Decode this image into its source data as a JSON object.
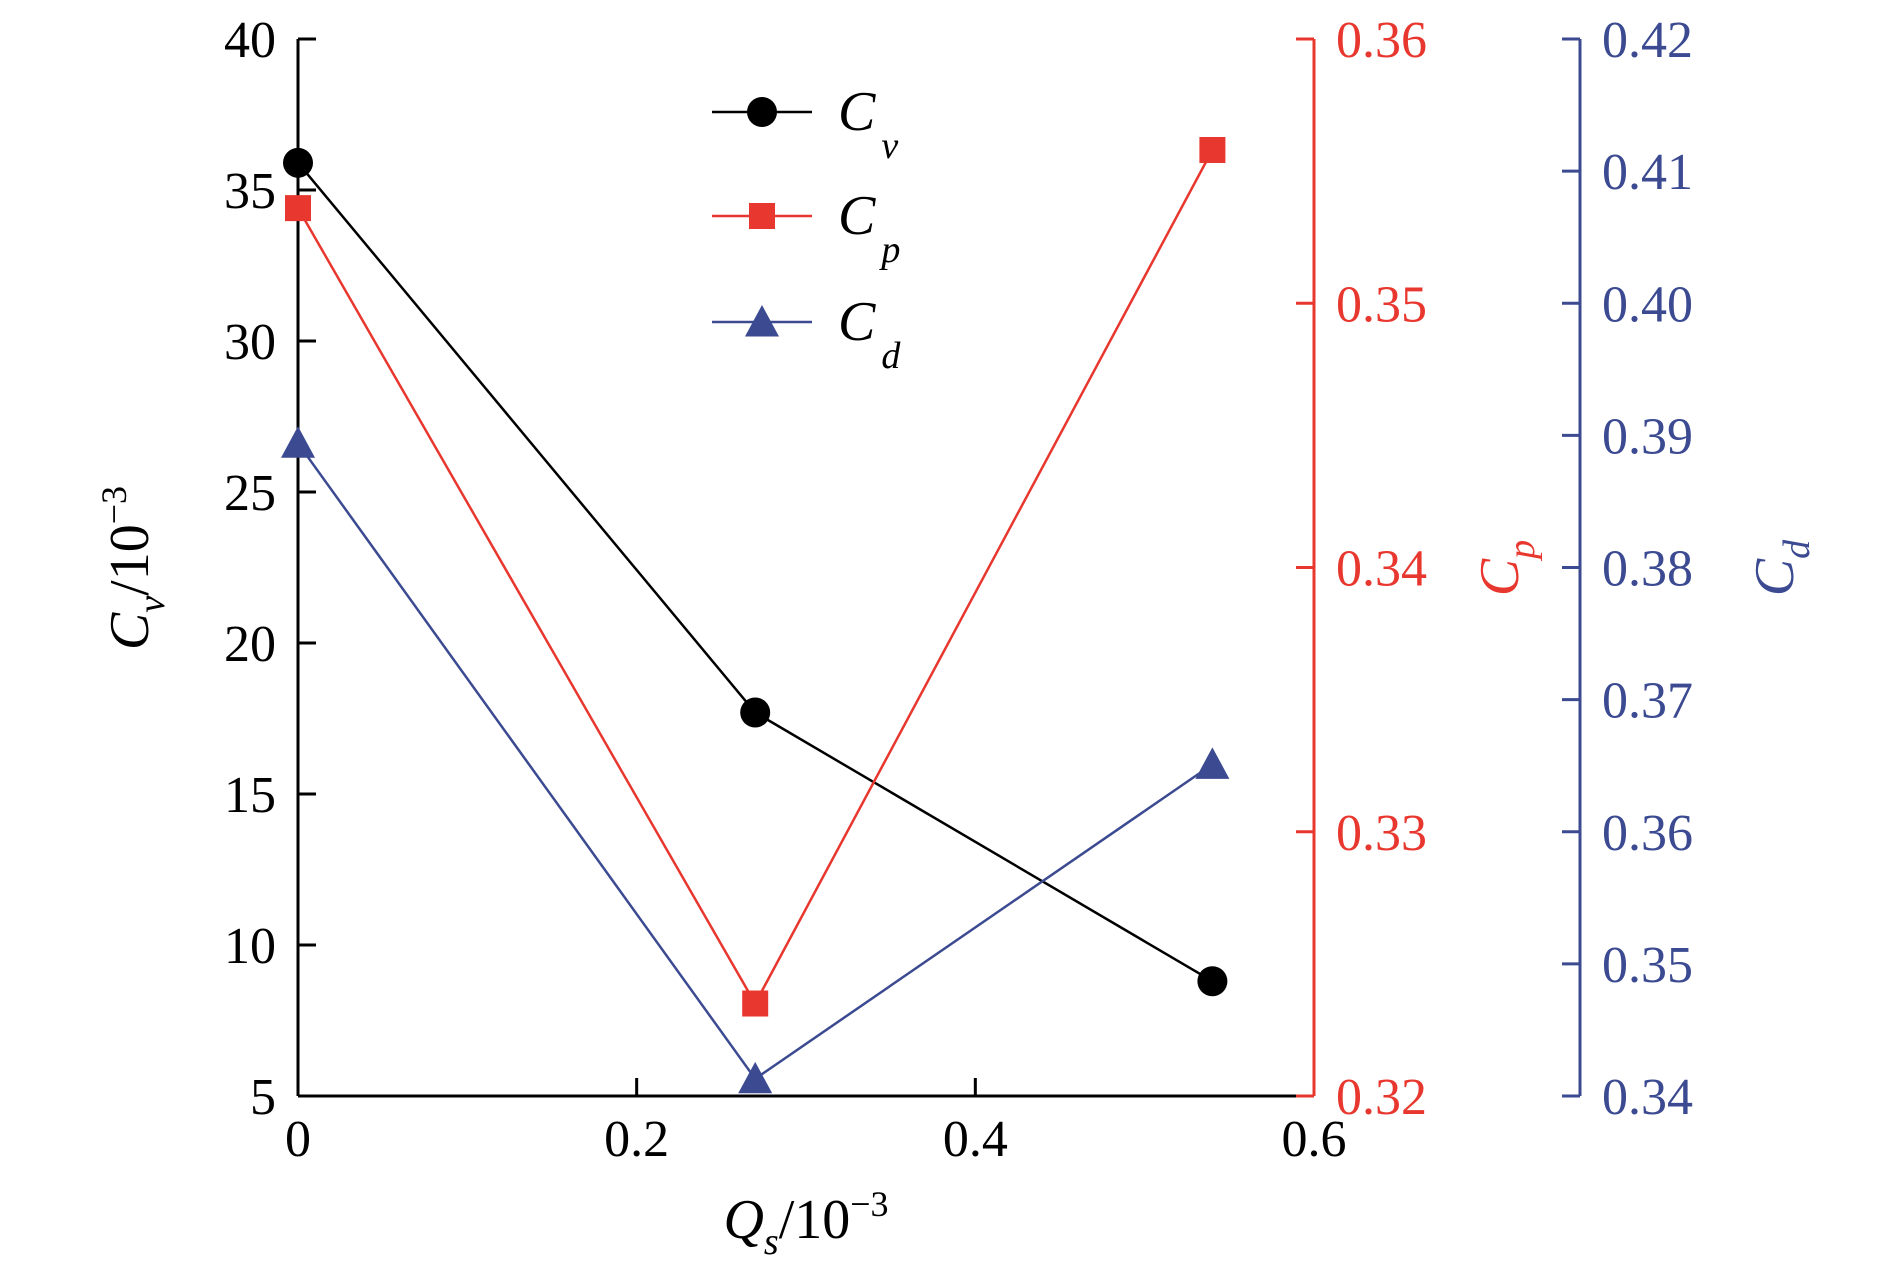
{
  "chart_data": {
    "type": "line",
    "x": [
      0,
      0.27,
      0.54
    ],
    "xlabel": {
      "symbol": "Q",
      "sub": "s",
      "unit": "/10",
      "sup": "−3"
    },
    "xlim": [
      0,
      0.6
    ],
    "xticks": [
      0,
      0.2,
      0.4,
      0.6
    ],
    "xtick_labels": [
      "0",
      "0.2",
      "0.4",
      "0.6"
    ],
    "grid": false,
    "legend_position": "top-center",
    "axes": [
      {
        "id": "cv",
        "side": "left",
        "color": "#000000",
        "ylim": [
          5,
          40
        ],
        "ticks": [
          5,
          10,
          15,
          20,
          25,
          30,
          35,
          40
        ],
        "tick_labels": [
          "5",
          "10",
          "15",
          "20",
          "25",
          "30",
          "35",
          "40"
        ],
        "label": {
          "symbol": "C",
          "sub": "v",
          "unit": "/10",
          "sup": "−3"
        }
      },
      {
        "id": "cp",
        "side": "right",
        "color": "#e8372e",
        "ylim": [
          0.32,
          0.36
        ],
        "ticks": [
          0.32,
          0.33,
          0.34,
          0.35,
          0.36
        ],
        "tick_labels": [
          "0.32",
          "0.33",
          "0.34",
          "0.35",
          "0.36"
        ],
        "label": {
          "symbol": "C",
          "sub": "p",
          "unit": "",
          "sup": ""
        }
      },
      {
        "id": "cd",
        "side": "right-outer",
        "color": "#3b4a91",
        "ylim": [
          0.34,
          0.42
        ],
        "ticks": [
          0.34,
          0.35,
          0.36,
          0.37,
          0.38,
          0.39,
          0.4,
          0.41,
          0.42
        ],
        "tick_labels": [
          "0.34",
          "0.35",
          "0.36",
          "0.37",
          "0.38",
          "0.39",
          "0.40",
          "0.41",
          "0.42"
        ],
        "label": {
          "symbol": "C",
          "sub": "d",
          "unit": "",
          "sup": ""
        }
      }
    ],
    "series": [
      {
        "name": "C",
        "sub": "v",
        "axis": "cv",
        "color": "#000000",
        "marker": "circle",
        "values": [
          35.9,
          17.7,
          8.8
        ]
      },
      {
        "name": "C",
        "sub": "p",
        "axis": "cp",
        "color": "#e8372e",
        "marker": "square",
        "values": [
          0.3536,
          0.3235,
          0.3558
        ]
      },
      {
        "name": "C",
        "sub": "d",
        "axis": "cd",
        "color": "#3b4a91",
        "marker": "triangle",
        "values": [
          0.3894,
          0.3413,
          0.3651
        ]
      }
    ]
  }
}
